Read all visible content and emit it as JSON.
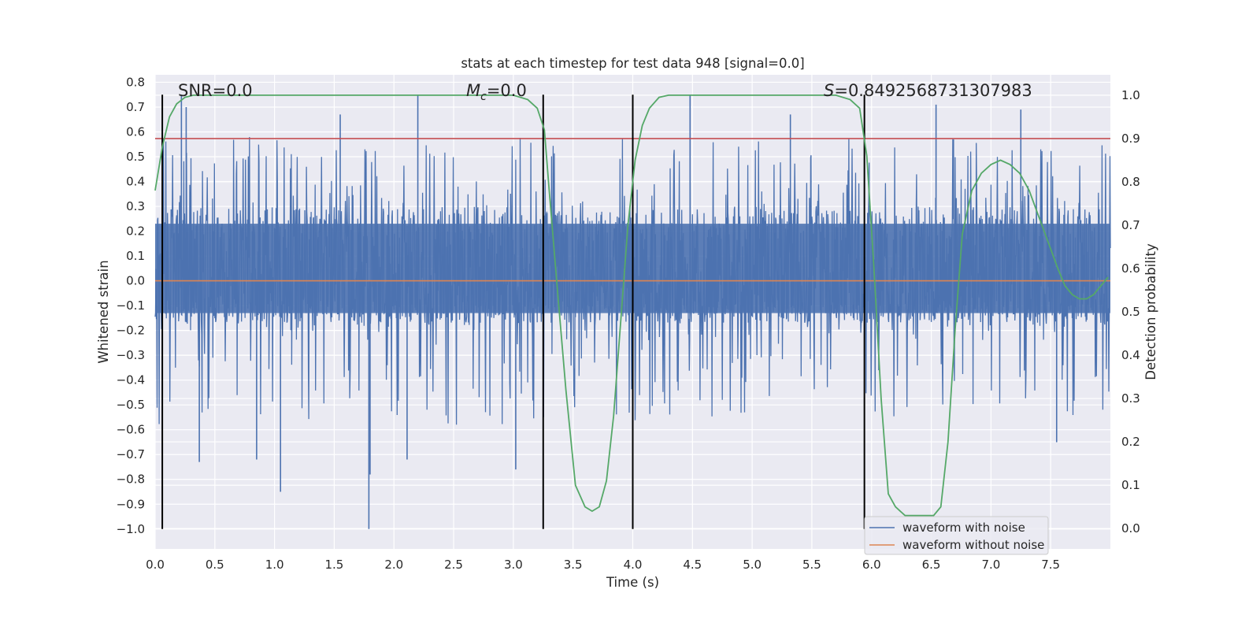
{
  "chart_data": {
    "type": "line",
    "title": "stats at each timestep for test data 948 [signal=0.0]",
    "xlabel": "Time (s)",
    "ylabel": "Whitened strain",
    "y2label": "Detection probability",
    "xlim": [
      0.0,
      8.0
    ],
    "ylim": [
      -1.08,
      0.83
    ],
    "y2lim": [
      -0.047,
      1.047
    ],
    "xticks": [
      "0.0",
      "0.5",
      "1.0",
      "1.5",
      "2.0",
      "2.5",
      "3.0",
      "3.5",
      "4.0",
      "4.5",
      "5.0",
      "5.5",
      "6.0",
      "6.5",
      "7.0",
      "7.5"
    ],
    "yticks": [
      "0.8",
      "0.7",
      "0.6",
      "0.5",
      "0.4",
      "0.3",
      "0.2",
      "0.1",
      "0.0",
      "−0.1",
      "−0.2",
      "−0.3",
      "−0.4",
      "−0.5",
      "−0.6",
      "−0.7",
      "−0.8",
      "−0.9",
      "−1.0"
    ],
    "y2ticks": [
      "1.0",
      "0.9",
      "0.8",
      "0.7",
      "0.6",
      "0.5",
      "0.4",
      "0.3",
      "0.2",
      "0.1",
      "0.0"
    ],
    "annotations": {
      "snr": "SNR=0.0",
      "mc_symbol": "M",
      "mc_sub": "c",
      "mc_value": "=0.0",
      "s_symbol": "S",
      "s_value": "=0.8492568731307983"
    },
    "series": [
      {
        "name": "waveform with noise",
        "color": "#4c72b0",
        "description": "whitened noisy strain, approx range -1.0 to 0.75",
        "band": [
          -0.13,
          0.23
        ],
        "spikes": [
          {
            "x": 0.22,
            "y": 0.75
          },
          {
            "x": 0.26,
            "y": 0.7
          },
          {
            "x": 0.37,
            "y": -0.73
          },
          {
            "x": 0.85,
            "y": -0.72
          },
          {
            "x": 1.05,
            "y": -0.85
          },
          {
            "x": 1.55,
            "y": 0.67
          },
          {
            "x": 1.79,
            "y": -1.0
          },
          {
            "x": 1.8,
            "y": -0.78
          },
          {
            "x": 2.11,
            "y": -0.72
          },
          {
            "x": 2.2,
            "y": 0.75
          },
          {
            "x": 3.02,
            "y": -0.76
          },
          {
            "x": 4.48,
            "y": 0.75
          },
          {
            "x": 5.32,
            "y": 0.67
          },
          {
            "x": 6.54,
            "y": 0.71
          },
          {
            "x": 7.25,
            "y": 0.69
          },
          {
            "x": 7.55,
            "y": -0.65
          }
        ]
      },
      {
        "name": "waveform without noise",
        "color": "#dd8452",
        "x": [
          0.0,
          8.0
        ],
        "y": [
          0.0,
          0.0
        ]
      },
      {
        "name": "detection probability",
        "color": "#55a868",
        "axis": "right",
        "x": [
          0.0,
          0.06,
          0.12,
          0.18,
          0.25,
          0.32,
          0.42,
          1.0,
          2.0,
          3.0,
          3.12,
          3.2,
          3.26,
          3.3,
          3.36,
          3.44,
          3.52,
          3.6,
          3.66,
          3.72,
          3.78,
          3.84,
          3.9,
          3.96,
          4.02,
          4.08,
          4.14,
          4.22,
          4.3,
          4.4,
          5.0,
          5.7,
          5.82,
          5.9,
          5.96,
          6.02,
          6.08,
          6.14,
          6.2,
          6.28,
          6.36,
          6.44,
          6.52,
          6.58,
          6.64,
          6.7,
          6.76,
          6.84,
          6.92,
          7.0,
          7.08,
          7.16,
          7.24,
          7.32,
          7.4,
          7.48,
          7.56,
          7.62,
          7.68,
          7.74,
          7.8,
          7.86,
          7.92,
          7.98
        ],
        "y": [
          0.78,
          0.88,
          0.95,
          0.98,
          0.995,
          1.0,
          1.0,
          1.0,
          1.0,
          1.0,
          0.99,
          0.97,
          0.92,
          0.78,
          0.58,
          0.32,
          0.1,
          0.05,
          0.04,
          0.05,
          0.11,
          0.26,
          0.48,
          0.7,
          0.85,
          0.93,
          0.97,
          0.995,
          1.0,
          1.0,
          1.0,
          1.0,
          0.99,
          0.97,
          0.86,
          0.6,
          0.3,
          0.08,
          0.05,
          0.03,
          0.03,
          0.03,
          0.03,
          0.05,
          0.2,
          0.46,
          0.68,
          0.78,
          0.82,
          0.84,
          0.85,
          0.84,
          0.82,
          0.78,
          0.72,
          0.66,
          0.6,
          0.56,
          0.54,
          0.53,
          0.53,
          0.54,
          0.56,
          0.58
        ]
      }
    ],
    "threshold": {
      "name": "detection threshold",
      "color": "#c44e52",
      "y2": 0.9
    },
    "vlines": {
      "color": "#000000",
      "x": [
        0.06,
        3.25,
        4.0,
        5.94
      ],
      "ymin": -1.0,
      "ymax": 0.75
    },
    "legend": {
      "position": "lower-right",
      "entries": [
        {
          "label": "waveform with noise",
          "color": "#4c72b0"
        },
        {
          "label": "waveform without noise",
          "color": "#dd8452"
        }
      ]
    }
  }
}
